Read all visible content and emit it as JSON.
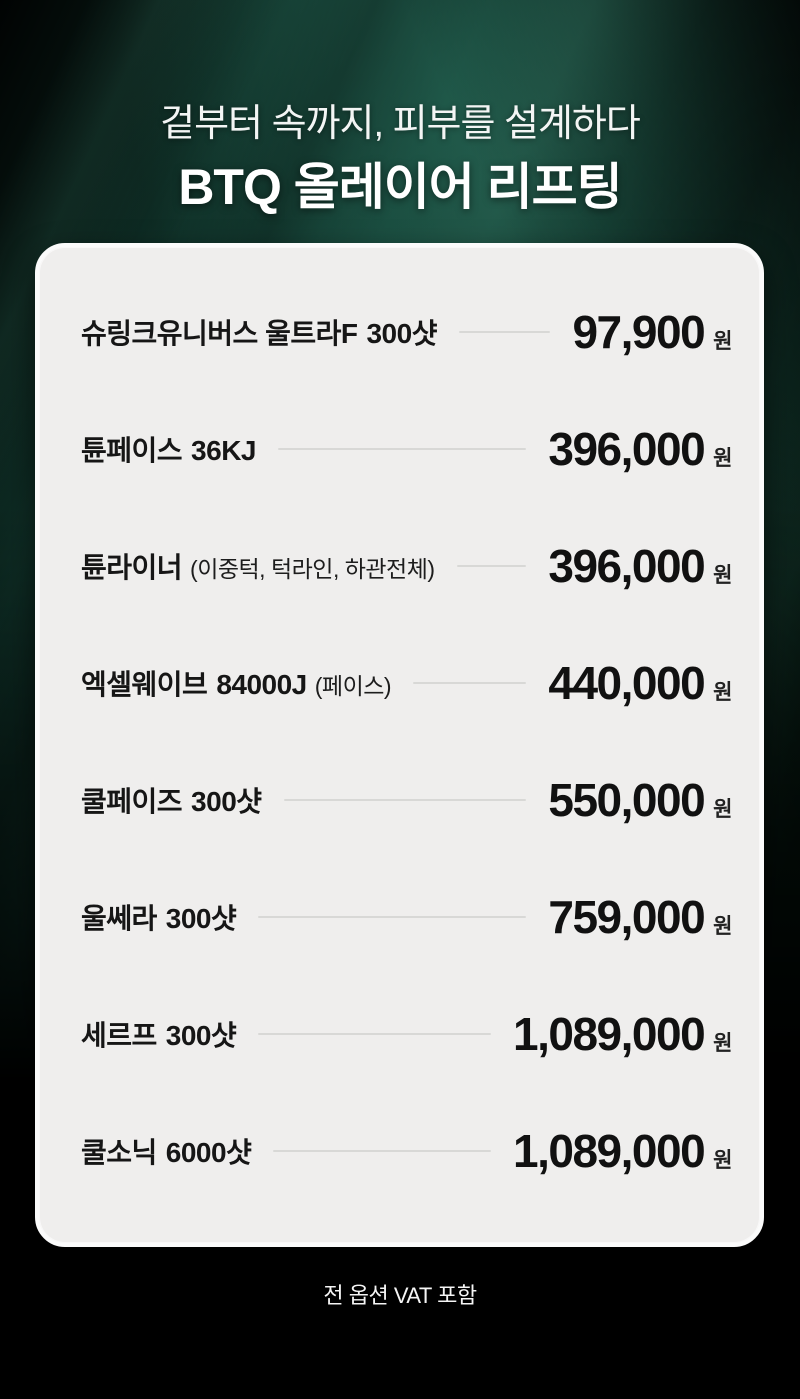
{
  "header": {
    "subtitle": "겉부터 속까지, 피부를 설계하다",
    "title": "BTQ 올레이어 리프팅"
  },
  "price_card": {
    "items": [
      {
        "name": "슈링크유니버스 울트라F",
        "name_bold": "300샷",
        "note": "",
        "price": "97,900",
        "unit": "원"
      },
      {
        "name": "튠페이스",
        "name_bold": "36KJ",
        "note": "",
        "price": "396,000",
        "unit": "원"
      },
      {
        "name": "튠라이너",
        "name_bold": "",
        "note": "(이중턱, 턱라인, 하관전체)",
        "price": "396,000",
        "unit": "원"
      },
      {
        "name": "엑셀웨이브",
        "name_bold": "84000J",
        "note": "(페이스)",
        "price": "440,000",
        "unit": "원"
      },
      {
        "name": "쿨페이즈",
        "name_bold": "300샷",
        "note": "",
        "price": "550,000",
        "unit": "원"
      },
      {
        "name": "울쎄라",
        "name_bold": "300샷",
        "note": "",
        "price": "759,000",
        "unit": "원"
      },
      {
        "name": "세르프",
        "name_bold": "300샷",
        "note": "",
        "price": "1,089,000",
        "unit": "원"
      },
      {
        "name": "쿨소닉",
        "name_bold": "6000샷",
        "note": "",
        "price": "1,089,000",
        "unit": "원"
      }
    ]
  },
  "footer": {
    "vat_note": "전 옵션 VAT 포함"
  },
  "colors": {
    "background_black": "#000000",
    "background_green": "#17473b",
    "card_background": "#efeeed",
    "card_rim": "#fbfbfb",
    "divider": "#d8d8d6",
    "text_dark": "#111111",
    "text_light": "#f5f5f5"
  }
}
